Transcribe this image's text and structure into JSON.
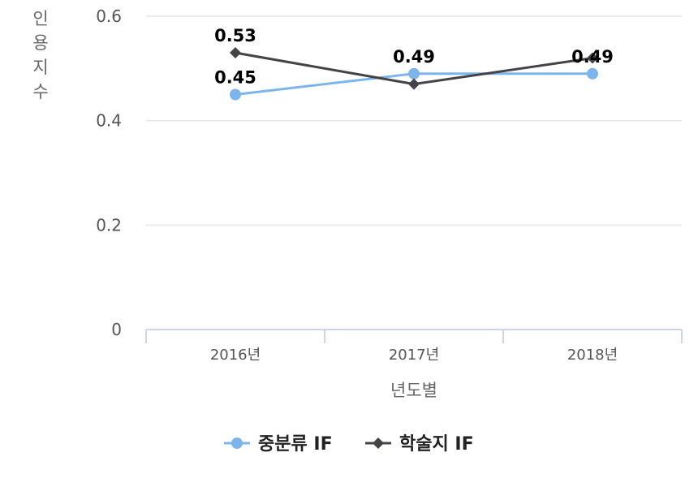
{
  "chart_data": {
    "type": "line",
    "categories": [
      "2016년",
      "2017년",
      "2018년"
    ],
    "series": [
      {
        "name": "중분류 IF",
        "values": [
          0.45,
          0.49,
          0.49
        ],
        "color": "#7cb5ec",
        "marker": "circle"
      },
      {
        "name": "학술지 IF",
        "values": [
          0.53,
          0.47,
          0.52
        ],
        "color": "#434348",
        "marker": "diamond"
      }
    ],
    "data_labels": [
      {
        "series": 0,
        "index": 0,
        "text": "0.45"
      },
      {
        "series": 0,
        "index": 1,
        "text": "0.49"
      },
      {
        "series": 0,
        "index": 2,
        "text": "0.49"
      },
      {
        "series": 1,
        "index": 0,
        "text": "0.53"
      }
    ],
    "xlabel": "년도별",
    "ylabel": "인용지수",
    "ylim": [
      0,
      0.6
    ],
    "yticks": [
      {
        "value": 0,
        "label": "0"
      },
      {
        "value": 0.2,
        "label": "0.2"
      },
      {
        "value": 0.4,
        "label": "0.4"
      },
      {
        "value": 0.6,
        "label": "0.6"
      }
    ],
    "grid": true,
    "legend_position": "bottom-center"
  }
}
